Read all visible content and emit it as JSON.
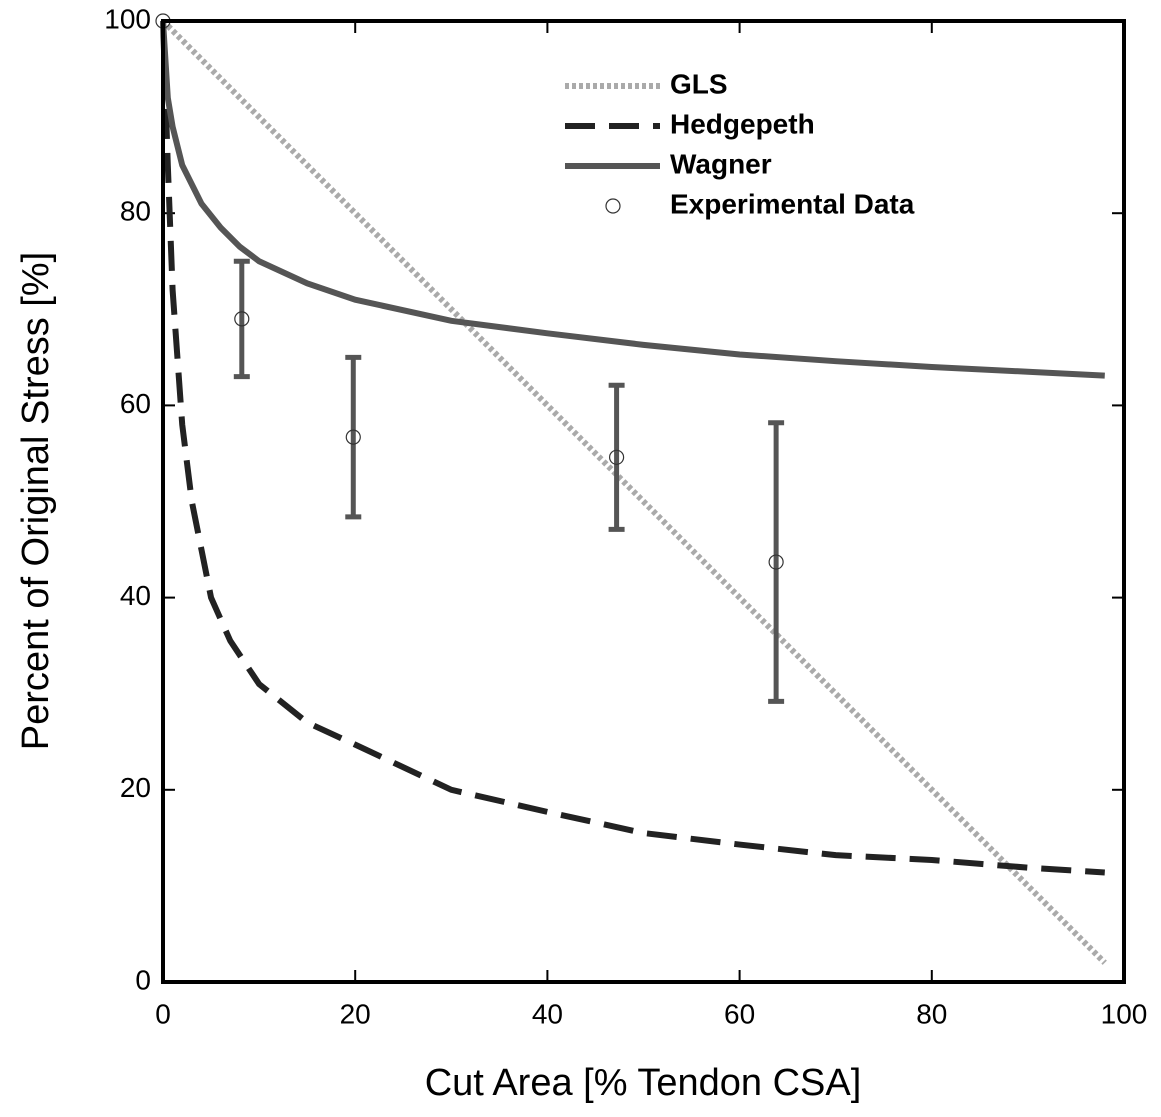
{
  "chart_data": {
    "type": "line",
    "xlabel": "Cut Area [% Tendon CSA]",
    "ylabel": "Percent of Original Stress [%]",
    "xlim": [
      0,
      100
    ],
    "ylim": [
      0,
      100
    ],
    "xticks": [
      0,
      20,
      40,
      60,
      80,
      100
    ],
    "yticks": [
      0,
      20,
      40,
      60,
      80,
      100
    ],
    "grid": false,
    "legend": "upper center",
    "series": [
      {
        "name": "GLS",
        "color": "#aaaaaa",
        "style": "dotted",
        "x": [
          0,
          98
        ],
        "values": [
          100,
          2
        ]
      },
      {
        "name": "Hedgepeth",
        "color": "#222222",
        "style": "dashed",
        "x": [
          0,
          0.5,
          1,
          2,
          3,
          4,
          5,
          7,
          10,
          15,
          20,
          30,
          40,
          50,
          60,
          70,
          80,
          90,
          98
        ],
        "values": [
          100,
          85,
          72,
          58,
          50,
          45,
          40,
          35.5,
          31,
          27,
          24.7,
          20,
          17.7,
          15.5,
          14.3,
          13.2,
          12.7,
          11.9,
          11.4
        ]
      },
      {
        "name": "Wagner",
        "color": "#555555",
        "style": "solid",
        "x": [
          0,
          0.5,
          1,
          2,
          4,
          6,
          8,
          10,
          15,
          20,
          30,
          40,
          50,
          60,
          70,
          80,
          90,
          98
        ],
        "values": [
          100,
          92,
          89,
          85,
          81,
          78.5,
          76.5,
          75,
          72.7,
          71,
          68.8,
          67.5,
          66.3,
          65.3,
          64.6,
          64,
          63.5,
          63.1
        ]
      },
      {
        "name": "Experimental Data",
        "color": "#333333",
        "style": "marker",
        "error_color": "#555555",
        "x": [
          0,
          8.2,
          19.8,
          47.2,
          63.8
        ],
        "values": [
          100,
          69,
          56.7,
          54.6,
          43.7
        ],
        "error": [
          null,
          6,
          8.3,
          7.5,
          14.5
        ]
      }
    ]
  }
}
